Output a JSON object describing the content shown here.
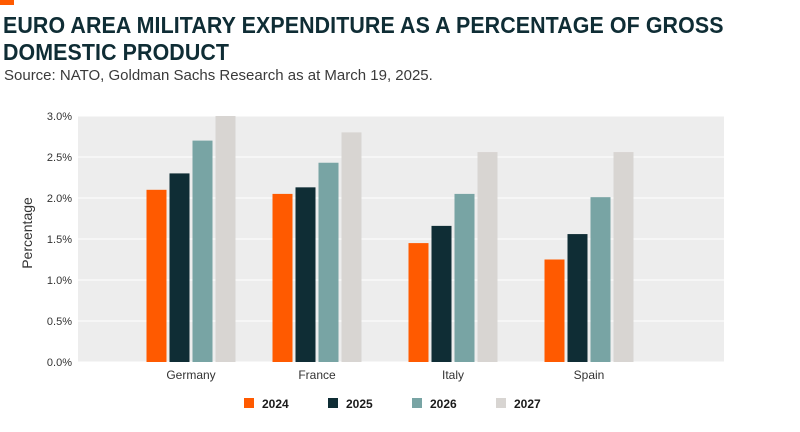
{
  "header": {
    "title": "EURO AREA MILITARY EXPENDITURE AS A PERCENTAGE OF GROSS DOMESTIC PRODUCT",
    "source": "Source: NATO, Goldman Sachs Research as at March 19, 2025."
  },
  "colors": {
    "accent": "#ff5a00",
    "plot_background": "#ededed",
    "grid": "#ffffff"
  },
  "chart_data": {
    "type": "bar",
    "title": "EURO AREA MILITARY EXPENDITURE AS A PERCENTAGE OF GROSS DOMESTIC PRODUCT",
    "xlabel": "",
    "ylabel": "Percentage",
    "ylim": [
      0,
      3.0
    ],
    "yticks": [
      "0.0%",
      "0.5%",
      "1.0%",
      "1.5%",
      "2.0%",
      "2.5%",
      "3.0%"
    ],
    "ytick_values": [
      0,
      0.5,
      1.0,
      1.5,
      2.0,
      2.5,
      3.0
    ],
    "categories": [
      "Germany",
      "France",
      "Italy",
      "Spain"
    ],
    "series": [
      {
        "name": "2024",
        "color": "#ff5a00",
        "values": [
          2.1,
          2.05,
          1.45,
          1.25
        ]
      },
      {
        "name": "2025",
        "color": "#0f2d35",
        "values": [
          2.3,
          2.13,
          1.66,
          1.56
        ]
      },
      {
        "name": "2026",
        "color": "#78a4a4",
        "values": [
          2.7,
          2.43,
          2.05,
          2.01
        ]
      },
      {
        "name": "2027",
        "color": "#d8d5d2",
        "values": [
          3.0,
          2.8,
          2.56,
          2.56
        ]
      }
    ],
    "grid": true,
    "legend": "bottom-center"
  }
}
